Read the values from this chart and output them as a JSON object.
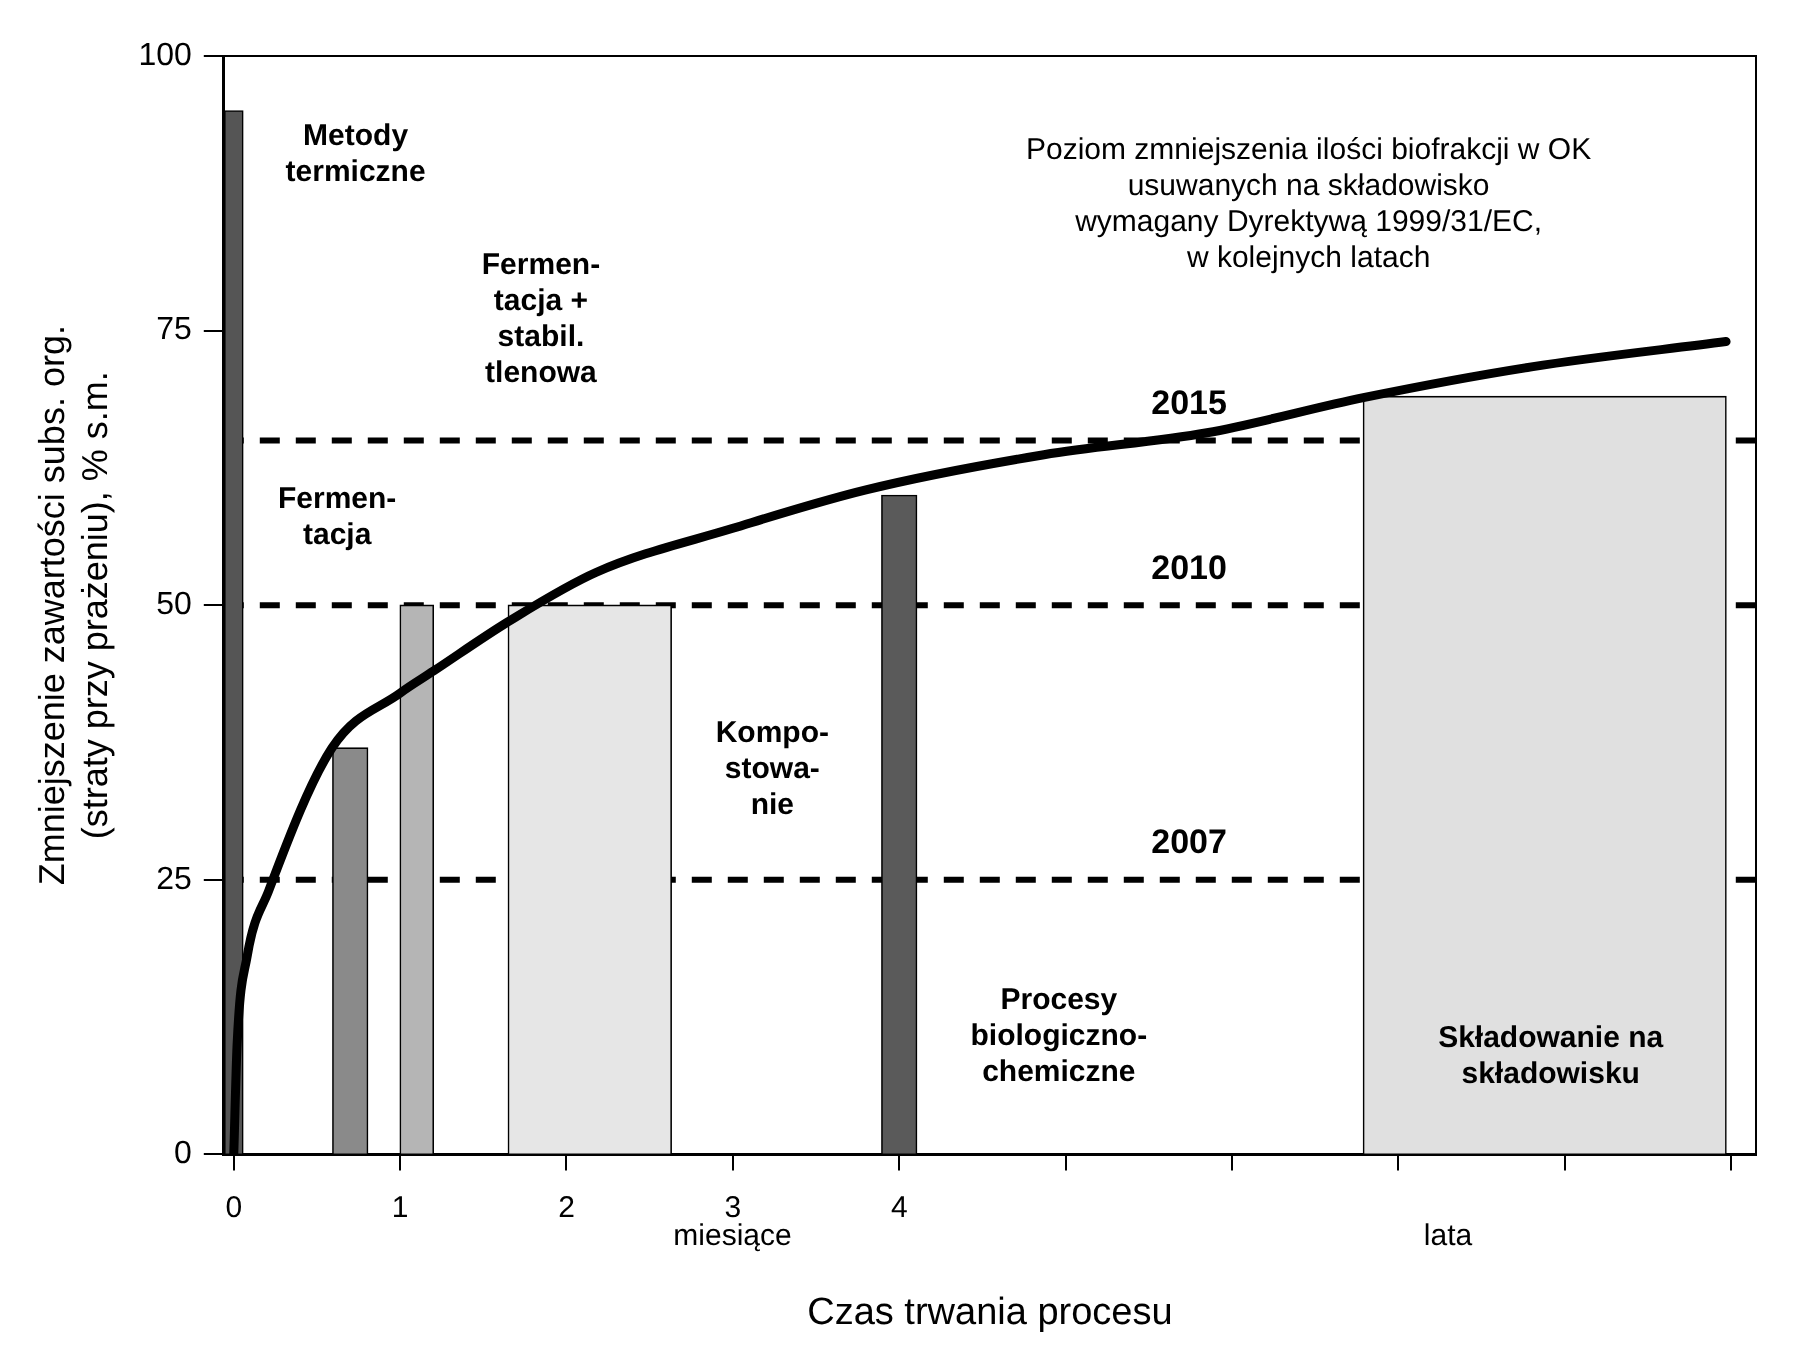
{
  "chart_data": {
    "type": "bar",
    "xlabel": "Czas trwania procesu",
    "ylabel": "Zmniejszenie zawartości subs. org.\n(straty przy prażeniu), % s.m.",
    "xlim": [
      -0.06,
      9.15
    ],
    "xticks": [
      0,
      1,
      2,
      3,
      4,
      {
        "value": 5,
        "label": null
      },
      {
        "value": 6,
        "label": null
      },
      {
        "value": 7,
        "label": null
      },
      {
        "value": 8,
        "label": null
      },
      {
        "value": 9,
        "label": null
      }
    ],
    "ylim": [
      0,
      100
    ],
    "yticks": [
      0,
      25,
      50,
      75,
      100
    ],
    "grid": false,
    "legend": false,
    "series": [
      {
        "x": [
          0,
          0.7,
          1.1,
          2.14,
          4,
          7.88
        ],
        "values": [
          95,
          37,
          50,
          50,
          60,
          69
        ],
        "colors": [
          "#555555",
          "#8a8a8a",
          "#b5b5b5",
          "#e6e6e6",
          "#5a5a5a",
          "#e0e0e0"
        ]
      },
      {
        "type": "line",
        "color": "#000000",
        "marker": "none",
        "x": [
          0,
          0.02,
          0.08,
          0.21,
          0.59,
          1.0,
          1.2,
          1.65,
          2.18,
          3.0,
          3.8,
          4.87,
          5.85,
          6.79,
          7.8,
          8.97
        ],
        "values": [
          0,
          10,
          18,
          24,
          37,
          42,
          44,
          48.5,
          53,
          57,
          60.5,
          63.7,
          65.7,
          68.9,
          71.7,
          74
        ]
      }
    ],
    "ref_lines": [
      {
        "axis": "y",
        "value": 65,
        "line_style": "dashed",
        "color": "#000000"
      },
      {
        "axis": "y",
        "value": 50,
        "line_style": "dashed",
        "color": "#000000"
      },
      {
        "axis": "y",
        "value": 25,
        "line_style": "dashed",
        "color": "#000000"
      }
    ],
    "annotations": [
      "Metody\ntermiczne",
      "Fermen-\ntacja +\nstabil.\ntlenowa",
      "Fermen-\ntacja",
      "Kompo-\nstowa-\nnie",
      "Procesy\nbiologiczno-\nchemiczne",
      "Składowanie na\nskładowisku",
      "Poziom zmniejszenia ilości biofrakcji w OK\nusuwanych na składowisko\nwymagany Dyrektywą 1999/31/EC,\nw kolejnych latach",
      "miesiące",
      "lata",
      {
        "text": "2015",
        "y": 65
      },
      {
        "text": "2010",
        "y": 50
      },
      {
        "text": "2007",
        "y": 25
      }
    ]
  }
}
